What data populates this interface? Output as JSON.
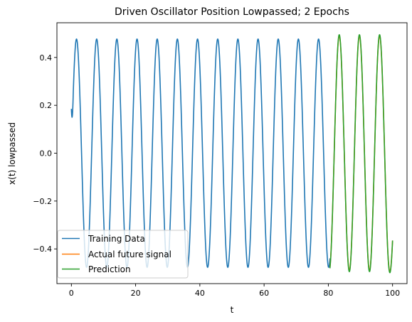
{
  "chart_data": {
    "type": "line",
    "title": "Driven Oscillator Position Lowpassed; 2 Epochs",
    "xlabel": "t",
    "ylabel": "x(t) lowpassed",
    "xlim": [
      -4.5,
      104.5
    ],
    "ylim": [
      -0.545,
      0.545
    ],
    "xticks": [
      0,
      20,
      40,
      60,
      80,
      100
    ],
    "yticks": [
      -0.4,
      -0.2,
      0.0,
      0.2,
      0.4
    ],
    "ytick_labels": [
      "−0.4",
      "−0.2",
      "0.0",
      "0.2",
      "0.4"
    ],
    "grid": false,
    "legend_position": "lower-left",
    "period": 6.28,
    "series": [
      {
        "name": "Training Data",
        "color": "#1f77b4",
        "t_range": [
          0,
          80.5
        ],
        "amplitude": 0.477,
        "first_value": 0.185,
        "first_peak_t": 1.6
      },
      {
        "name": "Actual future signal",
        "color": "#ff7f0e",
        "t_range": [
          80.5,
          100
        ],
        "amplitude": 0.49,
        "first_peak_t": 83.4,
        "last_value": -0.365
      },
      {
        "name": "Prediction",
        "color": "#2ca02c",
        "t_range": [
          80.5,
          100
        ],
        "amplitude": 0.495,
        "first_peak_t": 83.4,
        "last_value": -0.365
      }
    ]
  }
}
